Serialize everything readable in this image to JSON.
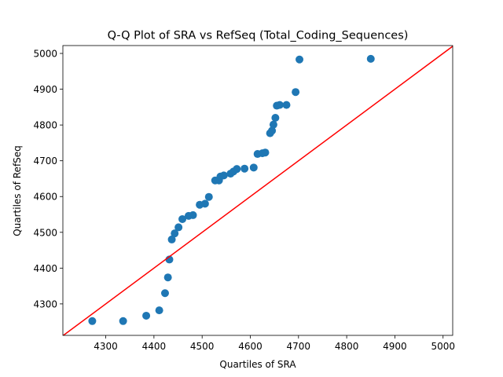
{
  "chart_data": {
    "type": "scatter",
    "title": "Q-Q Plot of SRA vs RefSeq (Total_Coding_Sequences)",
    "xlabel": "Quartiles of SRA",
    "ylabel": "Quartiles of RefSeq",
    "xlim": [
      4211,
      5020
    ],
    "ylim": [
      4212,
      5022
    ],
    "xticks": [
      4300,
      4400,
      4500,
      4600,
      4700,
      4800,
      4900,
      5000
    ],
    "yticks": [
      4300,
      4400,
      4500,
      4600,
      4700,
      4800,
      4900,
      5000
    ],
    "grid": false,
    "marker_color": "#1f77b4",
    "reference_line": {
      "from": [
        4211,
        4211
      ],
      "to": [
        5020,
        5020
      ],
      "color": "#ff0000"
    },
    "points": [
      [
        4272,
        4252
      ],
      [
        4336,
        4252
      ],
      [
        4384,
        4267
      ],
      [
        4411,
        4282
      ],
      [
        4423,
        4330
      ],
      [
        4429,
        4374
      ],
      [
        4432,
        4424
      ],
      [
        4437,
        4480
      ],
      [
        4443,
        4497
      ],
      [
        4451,
        4514
      ],
      [
        4459,
        4537
      ],
      [
        4472,
        4546
      ],
      [
        4481,
        4548
      ],
      [
        4495,
        4577
      ],
      [
        4506,
        4580
      ],
      [
        4514,
        4599
      ],
      [
        4527,
        4645
      ],
      [
        4535,
        4645
      ],
      [
        4538,
        4656
      ],
      [
        4545,
        4659
      ],
      [
        4559,
        4664
      ],
      [
        4565,
        4670
      ],
      [
        4572,
        4677
      ],
      [
        4588,
        4678
      ],
      [
        4607,
        4681
      ],
      [
        4615,
        4719
      ],
      [
        4625,
        4721
      ],
      [
        4631,
        4723
      ],
      [
        4641,
        4777
      ],
      [
        4645,
        4784
      ],
      [
        4648,
        4801
      ],
      [
        4652,
        4820
      ],
      [
        4655,
        4854
      ],
      [
        4661,
        4856
      ],
      [
        4675,
        4856
      ],
      [
        4694,
        4892
      ],
      [
        4702,
        4983
      ],
      [
        4850,
        4985
      ]
    ]
  }
}
